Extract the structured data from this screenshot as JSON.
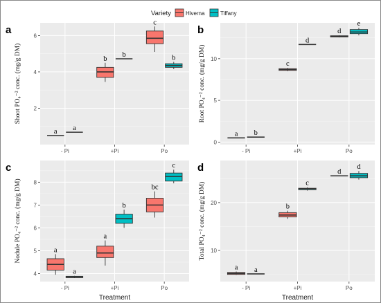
{
  "legend": {
    "title": "Variety",
    "items": [
      {
        "name": "Hiverna",
        "color": "#F8766D"
      },
      {
        "name": "Tiffany",
        "color": "#00BFC4"
      }
    ]
  },
  "colors": {
    "panel_background": "#EBEBEB",
    "gridlines": "#FFFFFF"
  },
  "chart_data": [
    {
      "panel": "a",
      "type": "box",
      "categories": [
        "- Pi",
        "+Pi",
        "Po"
      ],
      "ylabel": "Shoot PO₄⁻² conc. (mg/g DM)",
      "xlabel": "",
      "yticks": [
        2,
        4,
        6
      ],
      "ylim": [
        0,
        6.7
      ],
      "grid": true,
      "series": [
        {
          "name": "Hiverna",
          "boxes": [
            {
              "min": 0.5,
              "q1": 0.5,
              "median": 0.5,
              "q3": 0.5,
              "max": 0.5,
              "letter": "a"
            },
            {
              "min": 3.45,
              "q1": 3.7,
              "median": 4.0,
              "q3": 4.25,
              "max": 4.5,
              "letter": "b"
            },
            {
              "min": 5.1,
              "q1": 5.55,
              "median": 5.85,
              "q3": 6.25,
              "max": 6.5,
              "letter": "c"
            }
          ]
        },
        {
          "name": "Tiffany",
          "boxes": [
            {
              "min": 0.68,
              "q1": 0.68,
              "median": 0.68,
              "q3": 0.68,
              "max": 0.68,
              "letter": "a"
            },
            {
              "min": 4.72,
              "q1": 4.72,
              "median": 4.72,
              "q3": 4.72,
              "max": 4.72,
              "letter": "b"
            },
            {
              "min": 4.15,
              "q1": 4.25,
              "median": 4.35,
              "q3": 4.45,
              "max": 4.55,
              "letter": "b"
            }
          ]
        }
      ]
    },
    {
      "panel": "b",
      "type": "box",
      "categories": [
        "- Pi",
        "+Pi",
        "Po"
      ],
      "ylabel": "Root PO₄⁻² conc. (mg/g DM)",
      "xlabel": "",
      "yticks": [
        0,
        5,
        10
      ],
      "ylim": [
        -0.3,
        14.3
      ],
      "grid": true,
      "series": [
        {
          "name": "Hiverna",
          "boxes": [
            {
              "min": 0.5,
              "q1": 0.5,
              "median": 0.5,
              "q3": 0.5,
              "max": 0.5,
              "letter": "a"
            },
            {
              "min": 8.5,
              "q1": 8.6,
              "median": 8.7,
              "q3": 8.8,
              "max": 8.9,
              "letter": "c"
            },
            {
              "min": 12.55,
              "q1": 12.6,
              "median": 12.7,
              "q3": 12.75,
              "max": 12.8,
              "letter": "d"
            }
          ]
        },
        {
          "name": "Tiffany",
          "boxes": [
            {
              "min": 0.6,
              "q1": 0.6,
              "median": 0.6,
              "q3": 0.6,
              "max": 0.6,
              "letter": "b"
            },
            {
              "min": 11.7,
              "q1": 11.7,
              "median": 11.7,
              "q3": 11.7,
              "max": 11.7,
              "letter": "d"
            },
            {
              "min": 12.8,
              "q1": 13.0,
              "median": 13.2,
              "q3": 13.5,
              "max": 13.7,
              "letter": "e"
            }
          ]
        }
      ]
    },
    {
      "panel": "c",
      "type": "box",
      "categories": [
        "- Pi",
        "+Pi",
        "Po"
      ],
      "ylabel": "Nodule PO₄⁻² conc. (mg/g DM)",
      "xlabel": "Treatment",
      "yticks": [
        4,
        5,
        6,
        7,
        8
      ],
      "ylim": [
        3.65,
        8.95
      ],
      "grid": true,
      "series": [
        {
          "name": "Hiverna",
          "boxes": [
            {
              "min": 3.95,
              "q1": 4.15,
              "median": 4.4,
              "q3": 4.65,
              "max": 4.85,
              "letter": "a"
            },
            {
              "min": 4.35,
              "q1": 4.7,
              "median": 4.9,
              "q3": 5.2,
              "max": 5.45,
              "letter": "a"
            },
            {
              "min": 6.45,
              "q1": 6.7,
              "median": 7.0,
              "q3": 7.3,
              "max": 7.6,
              "letter": "bc"
            }
          ]
        },
        {
          "name": "Tiffany",
          "boxes": [
            {
              "min": 3.8,
              "q1": 3.82,
              "median": 3.85,
              "q3": 3.88,
              "max": 3.9,
              "letter": "a"
            },
            {
              "min": 6.0,
              "q1": 6.2,
              "median": 6.4,
              "q3": 6.6,
              "max": 6.8,
              "letter": "b"
            },
            {
              "min": 7.95,
              "q1": 8.05,
              "median": 8.25,
              "q3": 8.4,
              "max": 8.55,
              "letter": "c"
            }
          ]
        }
      ]
    },
    {
      "panel": "d",
      "type": "box",
      "categories": [
        "- Pi",
        "+Pi",
        "Po"
      ],
      "ylabel": "Total PO₄⁻² conc. (mg/g DM)",
      "xlabel": "Treatment",
      "yticks": [
        10,
        20
      ],
      "ylim": [
        3.5,
        28.8
      ],
      "grid": true,
      "series": [
        {
          "name": "Hiverna",
          "boxes": [
            {
              "min": 4.9,
              "q1": 5.0,
              "median": 5.2,
              "q3": 5.4,
              "max": 5.6,
              "letter": "a"
            },
            {
              "min": 16.6,
              "q1": 17.0,
              "median": 17.4,
              "q3": 17.9,
              "max": 18.3,
              "letter": "b"
            },
            {
              "min": 25.6,
              "q1": 25.6,
              "median": 25.6,
              "q3": 25.6,
              "max": 25.6,
              "letter": "d"
            }
          ]
        },
        {
          "name": "Tiffany",
          "boxes": [
            {
              "min": 5.1,
              "q1": 5.1,
              "median": 5.1,
              "q3": 5.1,
              "max": 5.1,
              "letter": "a"
            },
            {
              "min": 22.5,
              "q1": 22.7,
              "median": 22.9,
              "q3": 23.0,
              "max": 23.2,
              "letter": "c"
            },
            {
              "min": 24.8,
              "q1": 25.2,
              "median": 25.6,
              "q3": 26.1,
              "max": 26.6,
              "letter": "d"
            }
          ]
        }
      ]
    }
  ]
}
